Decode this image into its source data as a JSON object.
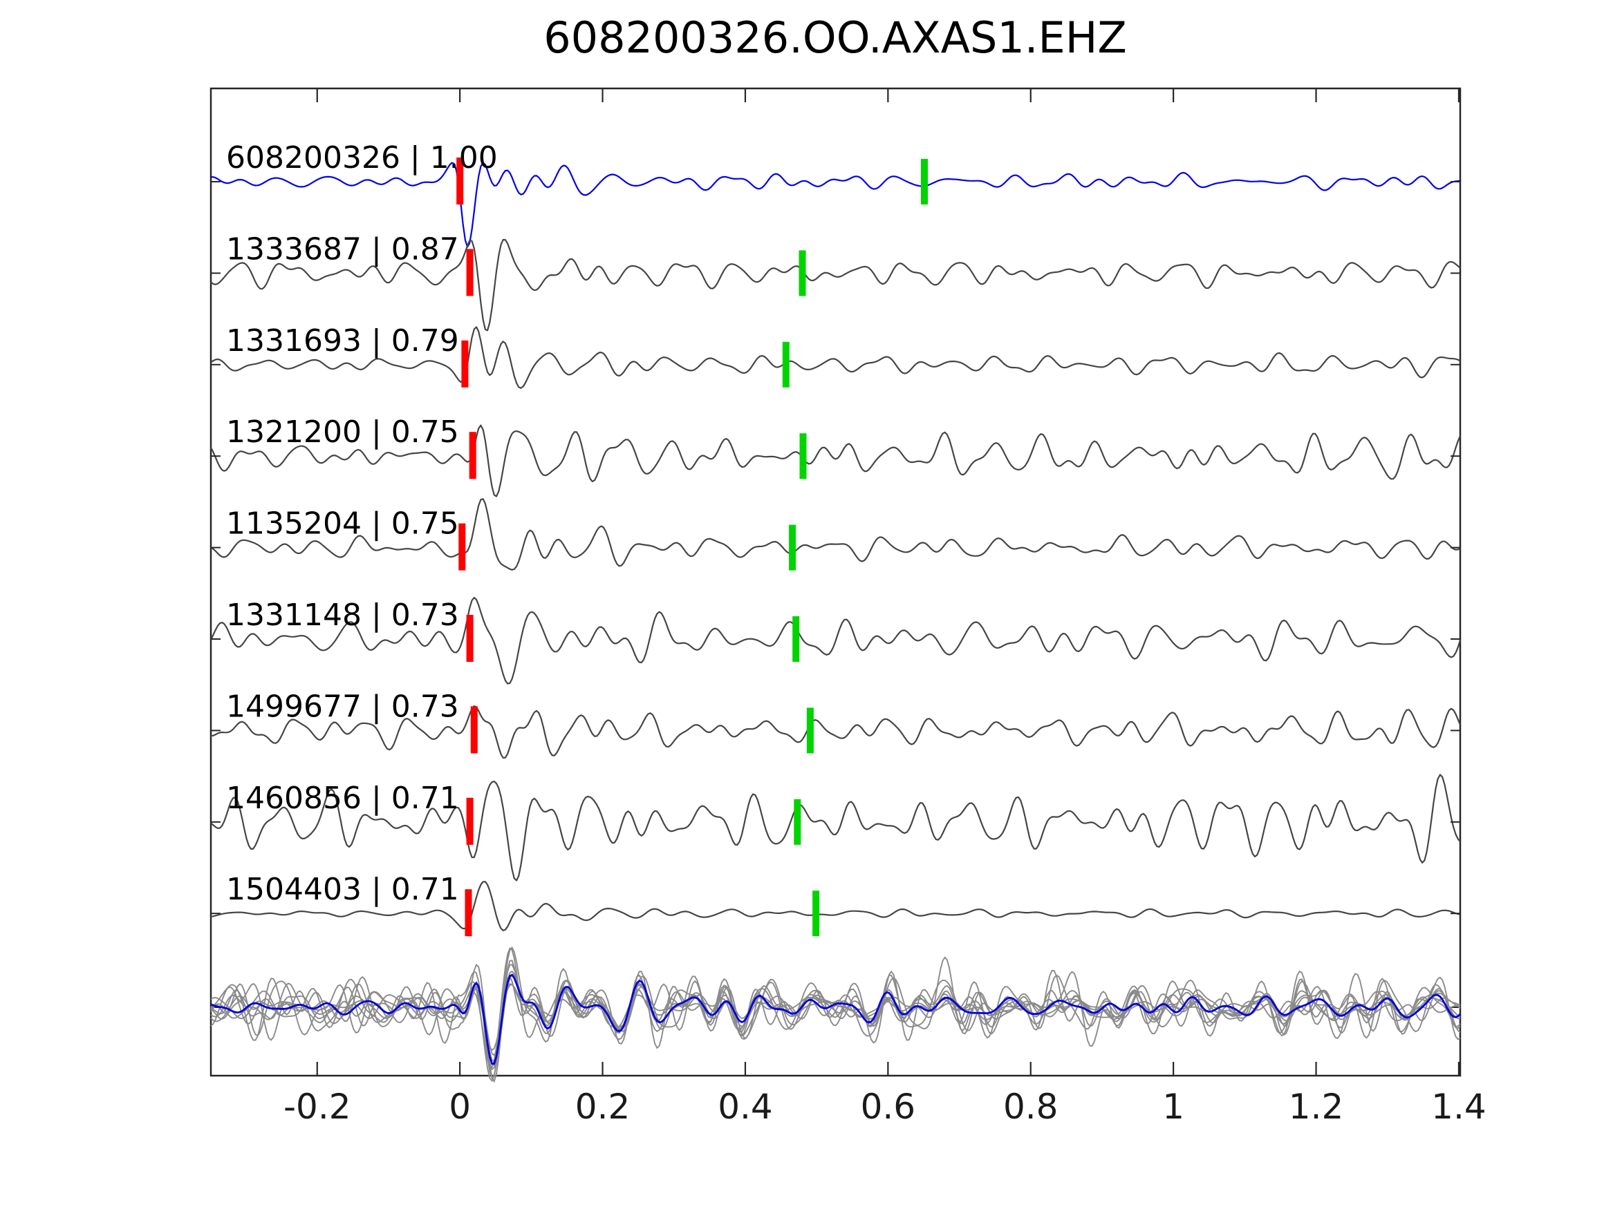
{
  "title": "608200326.OO.AXAS1.EHZ",
  "chart_data": {
    "type": "line",
    "title": "608200326.OO.AXAS1.EHZ",
    "description": "Waveform correlation gather: template event and matched events aligned on pick, with correlation coefficients, red alignment picks near 0 s and green secondary picks near 0.45-0.65 s, plus overlay stack row at bottom",
    "xlim": [
      -0.349,
      1.402
    ],
    "x_ticks": [
      -0.2,
      0,
      0.2,
      0.4,
      0.6,
      0.8,
      1.0,
      1.2,
      1.4
    ],
    "x_tick_labels": [
      "-0.2",
      "0",
      "0.2",
      "0.4",
      "0.6",
      "0.8",
      "1",
      "1.2",
      "1.4"
    ],
    "grid": false,
    "axis_color": "#262626",
    "default_trace_color": "#454545",
    "pick_colors": {
      "red": "#ff0000",
      "green": "#00d400"
    },
    "traces": [
      {
        "id": "608200326",
        "correlation": 1.0,
        "label": "608200326 | 1.00",
        "color": "#0000ee",
        "red_pick": 0.0,
        "green_pick": 0.651,
        "seed": 11,
        "envelope": {
          "pre": 8,
          "burst": 90,
          "tau": 0.08,
          "tail": 9,
          "end_growth": 0
        }
      },
      {
        "id": "1333687",
        "correlation": 0.87,
        "label": "1333687 | 0.87",
        "color": "#454545",
        "red_pick": 0.014,
        "green_pick": 0.48,
        "seed": 22,
        "envelope": {
          "pre": 17,
          "burst": 82,
          "tau": 0.085,
          "tail": 15,
          "end_growth": 0
        }
      },
      {
        "id": "1331693",
        "correlation": 0.79,
        "label": "1331693 | 0.79",
        "color": "#454545",
        "red_pick": 0.007,
        "green_pick": 0.457,
        "seed": 33,
        "envelope": {
          "pre": 8,
          "burst": 75,
          "tau": 0.08,
          "tail": 11,
          "end_growth": 3
        }
      },
      {
        "id": "1321200",
        "correlation": 0.75,
        "label": "1321200 | 0.75",
        "color": "#454545",
        "red_pick": 0.018,
        "green_pick": 0.481,
        "seed": 44,
        "envelope": {
          "pre": 15,
          "burst": 80,
          "tau": 0.07,
          "tail": 23,
          "end_growth": 4
        }
      },
      {
        "id": "1135204",
        "correlation": 0.75,
        "label": "1135204 | 0.75",
        "color": "#454545",
        "red_pick": 0.003,
        "green_pick": 0.466,
        "seed": 55,
        "envelope": {
          "pre": 12,
          "burst": 88,
          "tau": 0.09,
          "tail": 13,
          "end_growth": 2
        }
      },
      {
        "id": "1331148",
        "correlation": 0.73,
        "label": "1331148 | 0.73",
        "color": "#454545",
        "red_pick": 0.014,
        "green_pick": 0.471,
        "seed": 66,
        "envelope": {
          "pre": 19,
          "burst": 82,
          "tau": 0.1,
          "tail": 22,
          "end_growth": 3
        }
      },
      {
        "id": "1499677",
        "correlation": 0.73,
        "label": "1499677 | 0.73",
        "color": "#454545",
        "red_pick": 0.02,
        "green_pick": 0.491,
        "seed": 77,
        "envelope": {
          "pre": 18,
          "burst": 76,
          "tau": 0.085,
          "tail": 16,
          "end_growth": 10
        }
      },
      {
        "id": "1460856",
        "correlation": 0.71,
        "label": "1460856 | 0.71",
        "color": "#454545",
        "red_pick": 0.014,
        "green_pick": 0.473,
        "seed": 88,
        "envelope": {
          "pre": 33,
          "burst": 86,
          "tau": 0.1,
          "tail": 30,
          "end_growth": 18
        }
      },
      {
        "id": "1504403",
        "correlation": 0.71,
        "label": "1504403 | 0.71",
        "color": "#454545",
        "red_pick": 0.012,
        "green_pick": 0.499,
        "seed": 99,
        "envelope": {
          "pre": 4,
          "burst": 82,
          "tau": 0.065,
          "tail": 5,
          "end_growth": 0
        }
      }
    ],
    "overlay": {
      "gray_color": "#8a8a8a",
      "stack_color": "#0000dd",
      "shared_seed": 100,
      "tau": 0.22,
      "members": [
        {
          "noise_seed": 201,
          "pre": 14,
          "burst": 70,
          "tail": 10
        },
        {
          "noise_seed": 202,
          "pre": 22,
          "burst": 62,
          "tail": 16
        },
        {
          "noise_seed": 203,
          "pre": 30,
          "burst": 74,
          "tail": 22
        },
        {
          "noise_seed": 204,
          "pre": 38,
          "burst": 66,
          "tail": 30
        },
        {
          "noise_seed": 205,
          "pre": 16,
          "burst": 72,
          "tail": 12
        },
        {
          "noise_seed": 206,
          "pre": 26,
          "burst": 58,
          "tail": 20
        },
        {
          "noise_seed": 207,
          "pre": 34,
          "burst": 76,
          "tail": 26
        },
        {
          "noise_seed": 208,
          "pre": 19,
          "burst": 64,
          "tail": 14
        },
        {
          "noise_seed": 209,
          "pre": 42,
          "burst": 68,
          "tail": 34
        }
      ],
      "stack": {
        "noise_seed": 300,
        "noise_amp": 8,
        "burst": 62,
        "tail": 10
      }
    }
  }
}
